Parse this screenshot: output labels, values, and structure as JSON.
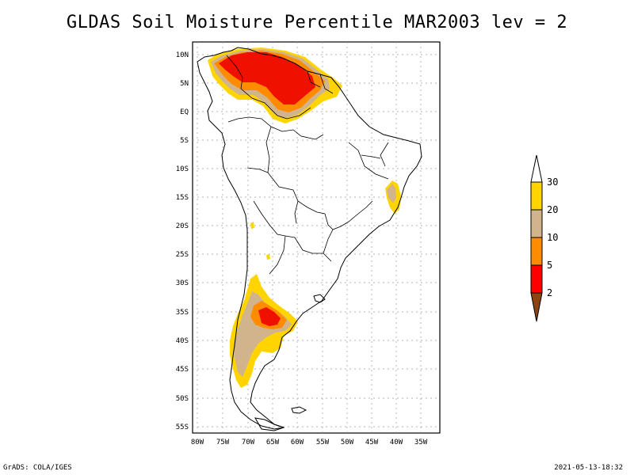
{
  "title": "GLDAS Soil Moisture Percentile MAR2003 lev = 2",
  "lat_labels": [
    "10N",
    "5N",
    "EQ",
    "5S",
    "10S",
    "15S",
    "20S",
    "25S",
    "30S",
    "35S",
    "40S",
    "45S",
    "50S",
    "55S"
  ],
  "lon_labels": [
    "80W",
    "75W",
    "70W",
    "65W",
    "60W",
    "55W",
    "50W",
    "45W",
    "40W",
    "35W"
  ],
  "legend": {
    "labels": [
      "30",
      "20",
      "10",
      "5",
      "2"
    ],
    "colors": {
      "above30": "#ffffff",
      "20_30": "#ffd400",
      "10_20": "#d2b48c",
      "5_10": "#ff8c00",
      "2_5": "#ff0000",
      "below2": "#8b4513"
    }
  },
  "colors": {
    "red": "#f01000",
    "orange": "#ff8c00",
    "tan": "#d2b48c",
    "yellow": "#ffd400",
    "coast": "#000000",
    "grid": "#9a9a9a"
  },
  "footer": {
    "left": "GrADS: COLA/IGES",
    "right": "2021-05-13-18:32"
  }
}
